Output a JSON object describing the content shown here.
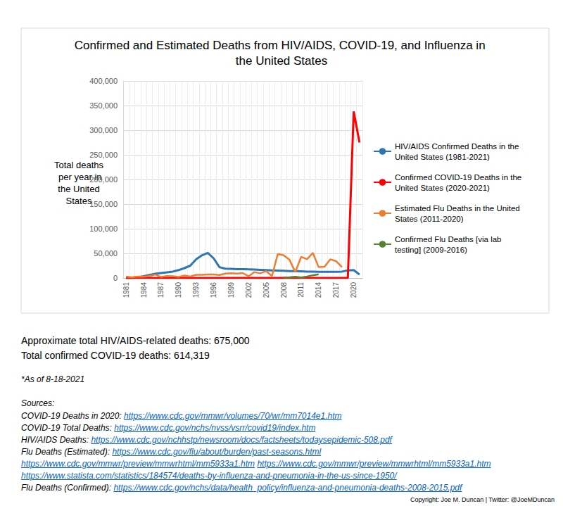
{
  "chart_data": {
    "type": "line",
    "title": "Confirmed and Estimated Deaths from HIV/AIDS, COVID-19, and Influenza in the United States",
    "y_label": "Total deaths per year in the United States",
    "categories": [
      "1981",
      null,
      null,
      "1984",
      null,
      null,
      "1987",
      null,
      null,
      "1990",
      null,
      null,
      "1993",
      null,
      null,
      "1996",
      null,
      null,
      "1999",
      null,
      null,
      "2002",
      null,
      null,
      "2005",
      null,
      null,
      "2008",
      null,
      null,
      "2011",
      null,
      null,
      "2014",
      null,
      null,
      "2017",
      null,
      null,
      "2020",
      null
    ],
    "series": [
      {
        "name": "HIV/AIDS Confirmed Deaths in the United States (1981-2021)",
        "color": "#2E75B6",
        "values": [
          0,
          500,
          1500,
          3500,
          6000,
          8500,
          10000,
          11500,
          13000,
          16000,
          20000,
          25000,
          38000,
          46000,
          51000,
          40000,
          22000,
          19000,
          18500,
          18000,
          18000,
          17500,
          17000,
          16500,
          16000,
          15500,
          15000,
          14500,
          14000,
          14000,
          13500,
          13000,
          13000,
          12500,
          12500,
          12500,
          12500,
          13000,
          15500,
          16000,
          7000
        ]
      },
      {
        "name": "Confirmed COVID-19 Deaths in the United States (2020-2021)",
        "color": "#FF0000",
        "values": [
          0,
          0,
          0,
          0,
          0,
          0,
          0,
          0,
          0,
          0,
          0,
          0,
          0,
          0,
          0,
          0,
          0,
          0,
          0,
          0,
          0,
          0,
          0,
          0,
          0,
          0,
          0,
          0,
          0,
          0,
          0,
          0,
          0,
          0,
          0,
          0,
          0,
          0,
          0,
          338000,
          275000
        ]
      },
      {
        "name": "Estimated Flu Deaths in the United States (2011-2020)",
        "color": "#ED7D31",
        "values": [
          3000,
          1500,
          3000,
          2500,
          4000,
          7000,
          2000,
          4000,
          3500,
          2000,
          5000,
          3000,
          6500,
          6500,
          7000,
          7000,
          6000,
          9000,
          9500,
          9000,
          10000,
          3500,
          12000,
          9500,
          14000,
          4000,
          49000,
          46000,
          37000,
          12000,
          43000,
          38000,
          51000,
          22000,
          23000,
          38000,
          34000,
          22000,
          null,
          null,
          null
        ]
      },
      {
        "name": "Confirmed Flu Deaths [via lab testing] (2009-2016)",
        "color": "#548235",
        "values": [
          null,
          null,
          null,
          null,
          null,
          null,
          null,
          null,
          null,
          null,
          null,
          null,
          null,
          null,
          null,
          null,
          null,
          null,
          null,
          null,
          null,
          null,
          null,
          null,
          null,
          null,
          null,
          1000,
          1500,
          2500,
          1000,
          3000,
          5500,
          7500,
          null,
          null,
          null,
          null,
          null,
          null,
          null
        ]
      }
    ],
    "ylim": [
      0,
      400000
    ],
    "yticks": [
      0,
      {
        "value": 50000,
        "label": "50,000"
      },
      {
        "value": 100000,
        "label": "100,000"
      },
      {
        "value": 150000,
        "label": "150,000"
      },
      {
        "value": 200000,
        "label": "200,000"
      },
      {
        "value": 250000,
        "label": "250,000"
      },
      {
        "value": 300000,
        "label": "300,000"
      },
      {
        "value": 350000,
        "label": "350,000"
      },
      {
        "value": 400000,
        "label": "400,000"
      }
    ],
    "grid": true,
    "legend": "right",
    "annotations": [
      "Approximate total HIV/AIDS-related deaths: 675,000",
      "Total confirmed COVID-19 deaths: 614,319"
    ],
    "footnote": "*As of 8-18-2021",
    "sources_title": "Sources:",
    "sources": [
      {
        "label": "COVID-19 Deaths in 2020:",
        "links": [
          "https://www.cdc.gov/mmwr/volumes/70/wr/mm7014e1.htm"
        ]
      },
      {
        "label": "COVID-19 Total Deaths:",
        "links": [
          "https://www.cdc.gov/nchs/nvss/vsrr/covid19/index.htm"
        ]
      },
      {
        "label": "HIV/AIDS Deaths:",
        "links": [
          "https://www.cdc.gov/nchhstp/newsroom/docs/factsheets/todaysepidemic-508.pdf"
        ]
      },
      {
        "label": "Flu Deaths (Estimated):",
        "links": [
          "https://www.cdc.gov/flu/about/burden/past-seasons.html"
        ]
      },
      {
        "links": [
          "https://www.cdc.gov/mmwr/preview/mmwrhtml/mm5933a1.htm",
          "https://www.cdc.gov/mmwr/preview/mmwrhtml/mm5933a1.htm"
        ]
      },
      {
        "links": [
          "https://www.statista.com/statistics/184574/deaths-by-influenza-and-pneumonia-in-the-us-since-1950/"
        ]
      },
      {
        "label": "Flu Deaths (Confirmed):",
        "links": [
          "https://www.cdc.gov/nchs/data/health_policy/influenza-and-pneumonia-deaths-2008-2015.pdf"
        ]
      }
    ],
    "credit": "Copyright: Joe M. Duncan | Twitter: @JoeMDuncan"
  }
}
